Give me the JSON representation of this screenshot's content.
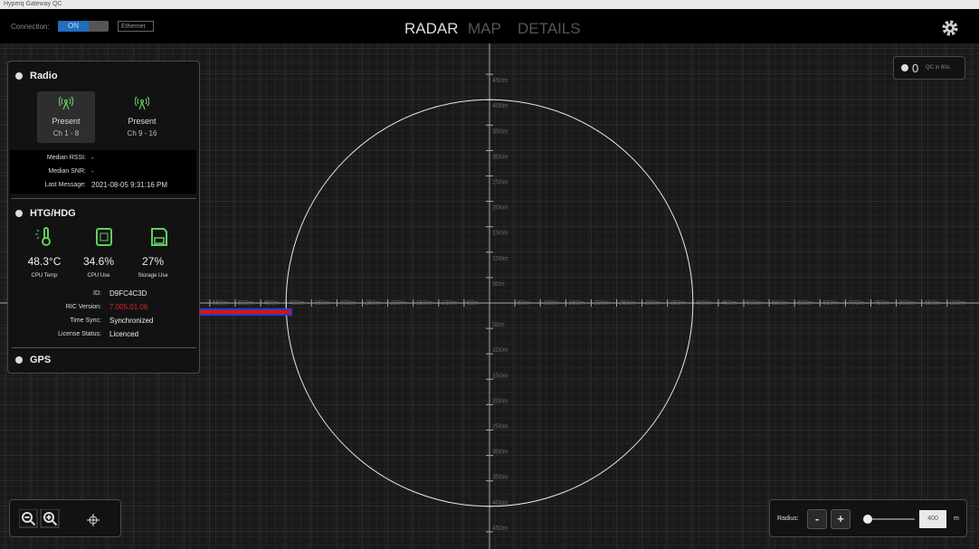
{
  "window": {
    "title": "Hyperq Gateway QC"
  },
  "toolbar": {
    "connection_label": "Connection:",
    "connection_state": "ON",
    "network": "Ethernet",
    "tabs": [
      "RADAR",
      "MAP",
      "DETAILS"
    ]
  },
  "qc": {
    "count": 0,
    "label": "QC in 60s"
  },
  "radio": {
    "title": "Radio",
    "channels": [
      {
        "status": "Present",
        "range": "Ch 1 - 8"
      },
      {
        "status": "Present",
        "range": "Ch 9 - 16"
      }
    ],
    "stats": [
      [
        "Median RSSI:",
        "-"
      ],
      [
        "Median SNR:",
        "-"
      ],
      [
        "Last Message:",
        "2021-08-05 9:31:16 PM"
      ]
    ]
  },
  "htg": {
    "title": "HTG/HDG",
    "metrics": [
      {
        "value": "48.3°C",
        "label": "CPU Temp"
      },
      {
        "value": "34.6%",
        "label": "CPU Use"
      },
      {
        "value": "27%",
        "label": "Storage Use"
      }
    ],
    "info": [
      [
        "ID:",
        "D9FC4C3D"
      ],
      [
        "RIC Version:",
        "7.005.01.06"
      ],
      [
        "Time Sync:",
        "Synchronized"
      ],
      [
        "License Status:",
        "Licenced"
      ]
    ]
  },
  "gps": {
    "title": "GPS"
  },
  "radar": {
    "x_left": [
      "550m",
      "500m",
      "450m",
      "400m",
      "350m",
      "300m",
      "250m",
      "200m",
      "150m",
      "100m",
      "50m"
    ],
    "x_right": [
      "50m",
      "100m",
      "150m",
      "200m",
      "250m",
      "300m",
      "350m",
      "400m",
      "450m",
      "500m",
      "550m",
      "600m",
      "650m",
      "700m",
      "750m",
      "800m",
      "850m",
      "900m"
    ],
    "y_up": [
      "50m",
      "100m",
      "150m",
      "200m",
      "250m",
      "300m",
      "350m",
      "400m",
      "450m"
    ],
    "y_down": [
      "50m",
      "100m",
      "150m",
      "200m",
      "250m",
      "300m",
      "350m",
      "400m",
      "450m"
    ]
  },
  "radius": {
    "label": "Radius:",
    "minus": "-",
    "plus": "+",
    "value": 400,
    "unit": "m"
  }
}
